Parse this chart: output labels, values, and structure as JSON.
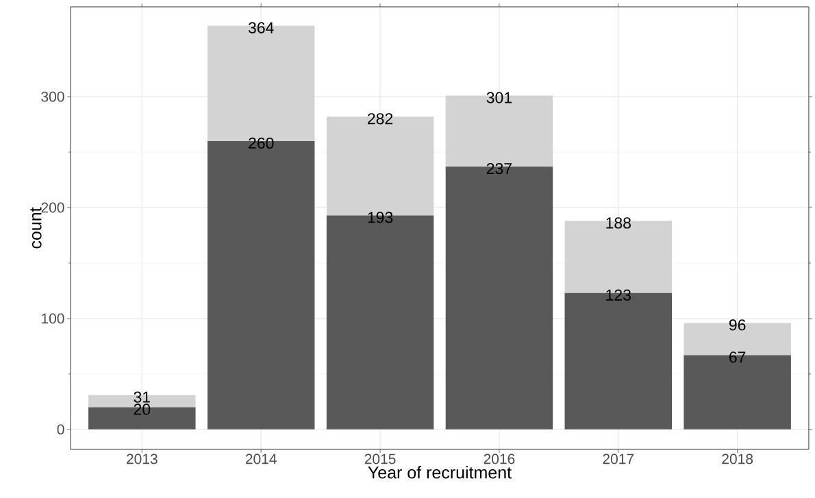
{
  "chart_data": {
    "type": "bar",
    "stacked": true,
    "xlabel": "Year of recruitment",
    "ylabel": "count",
    "categories": [
      "2013",
      "2014",
      "2015",
      "2016",
      "2017",
      "2018"
    ],
    "series": [
      {
        "color": "#595959",
        "values": [
          20,
          260,
          193,
          237,
          123,
          67
        ],
        "value_labels": [
          "20",
          "260",
          "193",
          "237",
          "123",
          "67"
        ]
      },
      {
        "color": "#d3d3d3",
        "values": [
          11,
          104,
          89,
          64,
          65,
          29
        ]
      }
    ],
    "totals": [
      "31",
      "364",
      "282",
      "301",
      "188",
      "96"
    ],
    "ylim": [
      -18,
      381
    ],
    "yticks": [
      0,
      100,
      200,
      300
    ],
    "grid": true
  }
}
